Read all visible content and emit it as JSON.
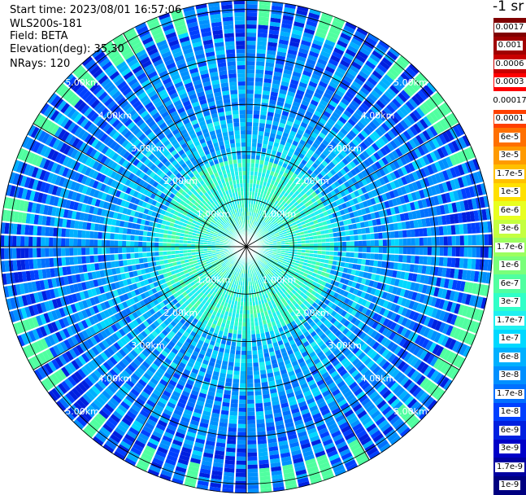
{
  "header": {
    "start_time": "Start time: 2023/08/01 16:57:06",
    "instrument": "WLS200s-181",
    "field": "Field: BETA",
    "elevation": "Elevation(deg): 35.30",
    "nrays": "NRays: 120"
  },
  "colorbar": {
    "unit_label": "-1 sr",
    "entries": [
      {
        "label": "0.0017",
        "color": "#800000"
      },
      {
        "label": "0.001",
        "color": "#a00000"
      },
      {
        "label": "0.0006",
        "color": "#c80000"
      },
      {
        "label": "0.0003",
        "color": "#ff0000"
      },
      {
        "label": "0.00017",
        "color": "#ffffff"
      },
      {
        "label": "0.0001",
        "color": "#ff4000"
      },
      {
        "label": "6e-5",
        "color": "#ff7000"
      },
      {
        "label": "3e-5",
        "color": "#ff9a00"
      },
      {
        "label": "1.7e-5",
        "color": "#ffc000"
      },
      {
        "label": "1e-5",
        "color": "#ffe000"
      },
      {
        "label": "6e-6",
        "color": "#e8ff20"
      },
      {
        "label": "3e-6",
        "color": "#c4ff40"
      },
      {
        "label": "1.7e-6",
        "color": "#9cff60"
      },
      {
        "label": "1e-6",
        "color": "#7aff7a"
      },
      {
        "label": "6e-7",
        "color": "#50ffa0"
      },
      {
        "label": "3e-7",
        "color": "#30ffc8"
      },
      {
        "label": "1.7e-7",
        "color": "#20f0f0"
      },
      {
        "label": "1e-7",
        "color": "#00d8ff"
      },
      {
        "label": "6e-8",
        "color": "#00b0ff"
      },
      {
        "label": "3e-8",
        "color": "#0090ff"
      },
      {
        "label": "1.7e-8",
        "color": "#0070ff"
      },
      {
        "label": "1e-8",
        "color": "#0040ff"
      },
      {
        "label": "6e-9",
        "color": "#0020e0"
      },
      {
        "label": "3e-9",
        "color": "#0000c8"
      },
      {
        "label": "1.7e-9",
        "color": "#0000a0"
      },
      {
        "label": "1e-9",
        "color": "#000080"
      }
    ]
  },
  "chart_data": {
    "type": "heatmap",
    "projection": "polar-ppi",
    "field": "BETA",
    "elevation_deg": 35.3,
    "nrays": 120,
    "max_range_km": 5.2,
    "range_rings_km": [
      1.0,
      2.0,
      3.0,
      4.0,
      5.0
    ],
    "ring_label_suffix": "km",
    "ring_labels": [
      "1.00km",
      "2.00km",
      "3.00km",
      "4.00km",
      "5.00km"
    ],
    "spoke_spacing_deg": 30,
    "color_scale": "log",
    "value_range": [
      1e-09,
      0.0017
    ],
    "grid": true
  }
}
